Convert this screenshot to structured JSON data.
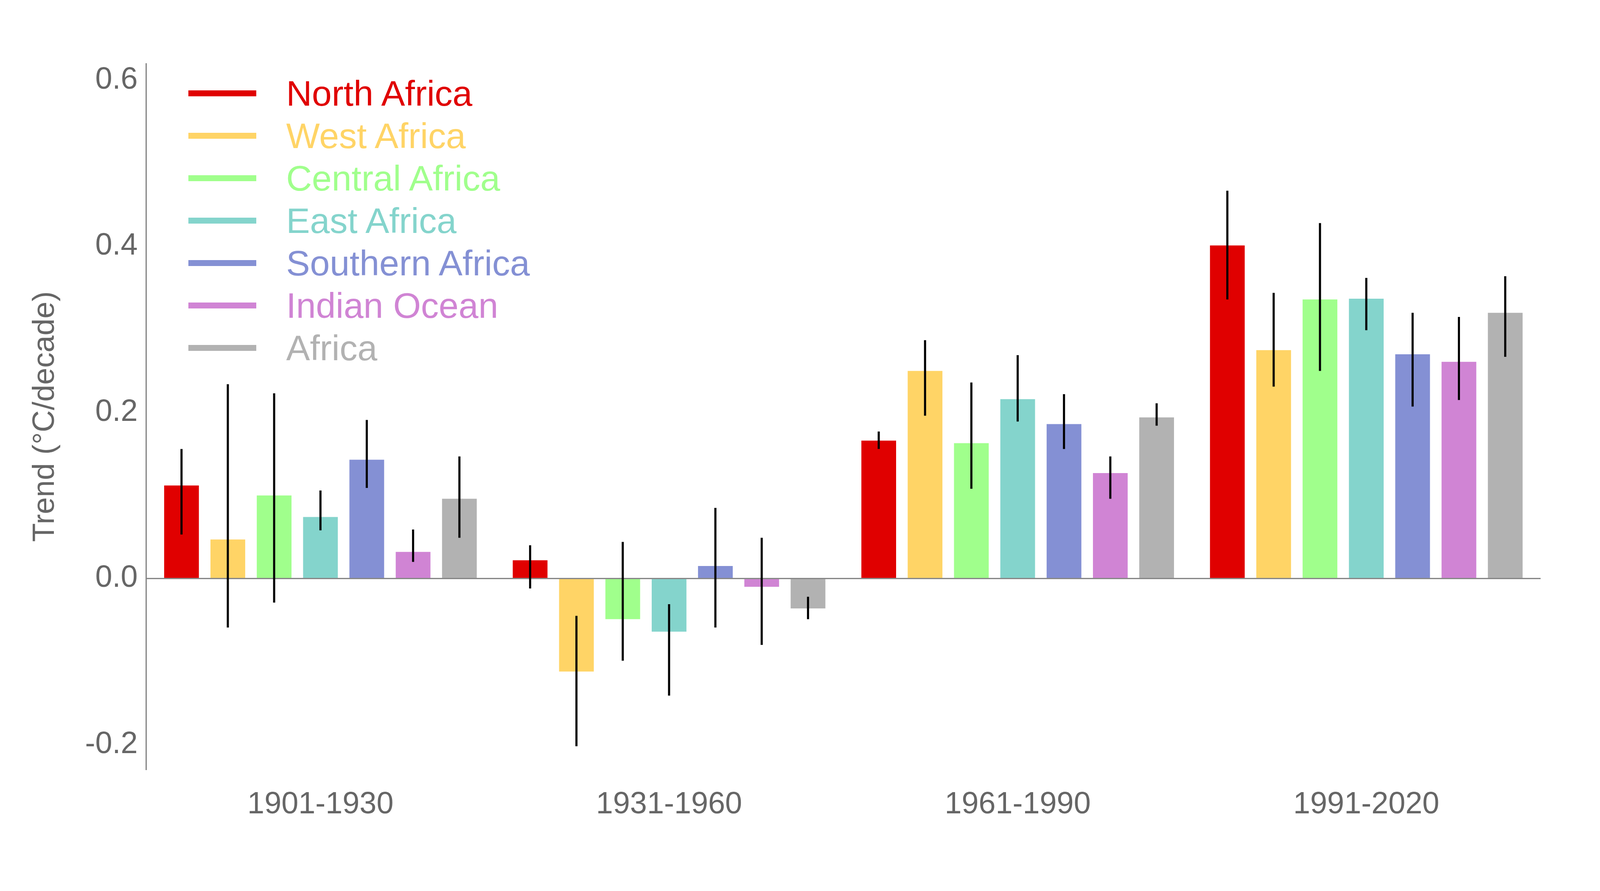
{
  "chart_data": {
    "type": "bar",
    "categories": [
      "1901-1930",
      "1931-1960",
      "1961-1990",
      "1991-2020"
    ],
    "ylabel": "Trend (°C/decade)",
    "ylim": [
      -0.23,
      0.62
    ],
    "yticks": [
      -0.2,
      {
        "value": 0,
        "label": "0.0"
      },
      0.2,
      0.4,
      0.6
    ],
    "grid": false,
    "legend": "upper left",
    "series": [
      {
        "name": "North Africa",
        "color": "#e00000",
        "values": [
          0.112,
          0.022,
          0.166,
          0.401
        ],
        "error_low": [
          0.053,
          -0.012,
          0.156,
          0.336
        ],
        "error_high": [
          0.156,
          0.04,
          0.177,
          0.467
        ]
      },
      {
        "name": "West Africa",
        "color": "#ffd466",
        "values": [
          0.047,
          -0.112,
          0.25,
          0.275
        ],
        "error_low": [
          -0.059,
          -0.202,
          0.196,
          0.231
        ],
        "error_high": [
          0.234,
          -0.045,
          0.287,
          0.344
        ]
      },
      {
        "name": "Central Africa",
        "color": "#a0ff8c",
        "values": [
          0.1,
          -0.049,
          0.163,
          0.336
        ],
        "error_low": [
          -0.029,
          -0.099,
          0.108,
          0.25
        ],
        "error_high": [
          0.223,
          0.044,
          0.236,
          0.428
        ]
      },
      {
        "name": "East Africa",
        "color": "#84d4cc",
        "values": [
          0.074,
          -0.064,
          0.216,
          0.337
        ],
        "error_low": [
          0.058,
          -0.141,
          0.189,
          0.299
        ],
        "error_high": [
          0.106,
          -0.031,
          0.269,
          0.362
        ]
      },
      {
        "name": "Southern Africa",
        "color": "#8490d4",
        "values": [
          0.143,
          0.015,
          0.186,
          0.27
        ],
        "error_low": [
          0.109,
          -0.059,
          0.156,
          0.207
        ],
        "error_high": [
          0.191,
          0.085,
          0.222,
          0.32
        ]
      },
      {
        "name": "Indian Ocean",
        "color": "#d084d4",
        "values": [
          0.032,
          -0.01,
          0.127,
          0.261
        ],
        "error_low": [
          0.02,
          -0.08,
          0.096,
          0.215
        ],
        "error_high": [
          0.059,
          0.049,
          0.147,
          0.315
        ]
      },
      {
        "name": "Africa",
        "color": "#b2b2b2",
        "values": [
          0.096,
          -0.036,
          0.194,
          0.32
        ],
        "error_low": [
          0.049,
          -0.049,
          0.184,
          0.267
        ],
        "error_high": [
          0.147,
          -0.022,
          0.211,
          0.364
        ]
      }
    ]
  }
}
